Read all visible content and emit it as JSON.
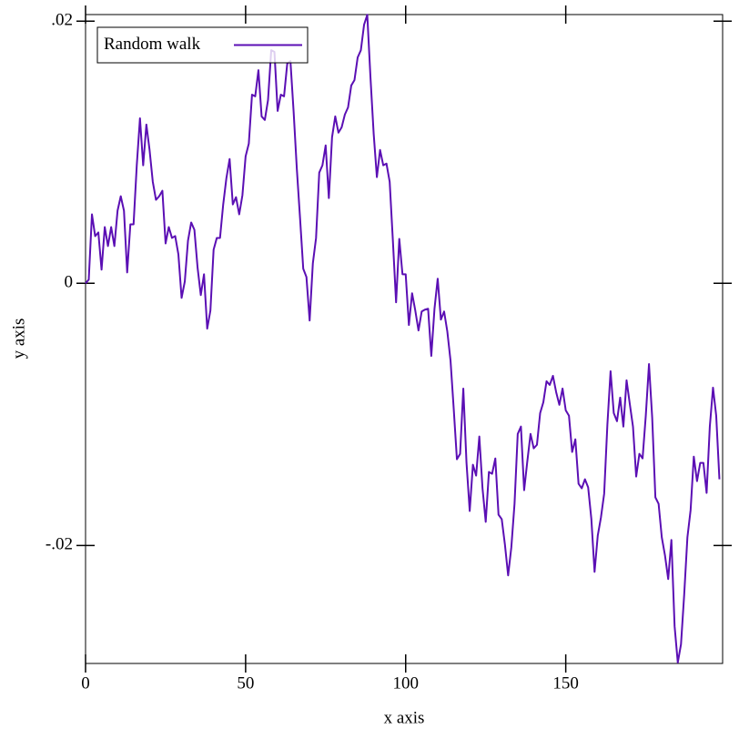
{
  "chart_data": {
    "type": "line",
    "xlabel": "x axis",
    "ylabel": "y axis",
    "xlim": [
      0,
      199
    ],
    "ylim": [
      -0.029,
      0.0205
    ],
    "xticks": [
      0,
      50,
      100,
      150
    ],
    "yticks": [
      {
        "value": 0.02,
        "label": ".02"
      },
      0,
      {
        "value": -0.02,
        "label": "-.02"
      }
    ],
    "grid": false,
    "legend": "top-left",
    "x": [
      0,
      1,
      2,
      3,
      4,
      5,
      6,
      7,
      8,
      9,
      10,
      11,
      12,
      13,
      14,
      15,
      16,
      17,
      18,
      19,
      20,
      21,
      22,
      23,
      24,
      25,
      26,
      27,
      28,
      29,
      30,
      31,
      32,
      33,
      34,
      35,
      36,
      37,
      38,
      39,
      40,
      41,
      42,
      43,
      44,
      45,
      46,
      47,
      48,
      49,
      50,
      51,
      52,
      53,
      54,
      55,
      56,
      57,
      58,
      59,
      60,
      61,
      62,
      63,
      64,
      65,
      66,
      67,
      68,
      69,
      70,
      71,
      72,
      73,
      74,
      75,
      76,
      77,
      78,
      79,
      80,
      81,
      82,
      83,
      84,
      85,
      86,
      87,
      88,
      89,
      90,
      91,
      92,
      93,
      94,
      95,
      96,
      97,
      98,
      99,
      100,
      101,
      102,
      103,
      104,
      105,
      106,
      107,
      108,
      109,
      110,
      111,
      112,
      113,
      114,
      115,
      116,
      117,
      118,
      119,
      120,
      121,
      122,
      123,
      124,
      125,
      126,
      127,
      128,
      129,
      130,
      131,
      132,
      133,
      134,
      135,
      136,
      137,
      138,
      139,
      140,
      141,
      142,
      143,
      144,
      145,
      146,
      147,
      148,
      149,
      150,
      151,
      152,
      153,
      154,
      155,
      156,
      157,
      158,
      159,
      160,
      161,
      162,
      163,
      164,
      165,
      166,
      167,
      168,
      169,
      170,
      171,
      172,
      173,
      174,
      175,
      176,
      177,
      178,
      179,
      180,
      181,
      182,
      183,
      184,
      185,
      186,
      187,
      188,
      189,
      190,
      191,
      192,
      193,
      194,
      195,
      196,
      197,
      198
    ],
    "series": [
      {
        "name": "Random walk",
        "color": "#5b0fb4",
        "values": [
          0,
          0.00028,
          0.00526,
          0.0036,
          0.00388,
          0.00104,
          0.00429,
          0.00284,
          0.00429,
          0.00284,
          0.00554,
          0.00664,
          0.00554,
          0.00083,
          0.0045,
          0.0045,
          0.009,
          0.01259,
          0.009,
          0.01211,
          0.01017,
          0.00775,
          0.00637,
          0.00664,
          0.00706,
          0.00304,
          0.00429,
          0.00346,
          0.0036,
          0.00221,
          -0.00111,
          0.00014,
          0.00325,
          0.00464,
          0.00408,
          0.00118,
          -0.0009,
          0.00069,
          -0.00346,
          -0.00208,
          0.00256,
          0.00346,
          0.00346,
          0.00602,
          0.00803,
          0.00948,
          0.00602,
          0.00657,
          0.00526,
          0.00671,
          0.00969,
          0.01066,
          0.01439,
          0.01426,
          0.01626,
          0.01273,
          0.01246,
          0.01398,
          0.01778,
          0.01765,
          0.01315,
          0.01439,
          0.01426,
          0.01675,
          0.01695,
          0.01308,
          0.00872,
          0.00498,
          0.00111,
          0.00048,
          -0.00284,
          0.00152,
          0.00346,
          0.00844,
          0.009,
          0.01052,
          0.0065,
          0.01114,
          0.01273,
          0.01149,
          0.0119,
          0.01287,
          0.01342,
          0.01509,
          0.0155,
          0.01723,
          0.01778,
          0.01972,
          0.02048,
          0.01571,
          0.01142,
          0.0081,
          0.01017,
          0.009,
          0.00913,
          0.00775,
          0.00325,
          -0.00145,
          0.00339,
          0.00069,
          0.00069,
          -0.00318,
          -0.00076,
          -0.00208,
          -0.0036,
          -0.00215,
          -0.00201,
          -0.00194,
          -0.00554,
          -0.00194,
          0.00035,
          -0.00277,
          -0.00215,
          -0.00367,
          -0.00588,
          -0.00955,
          -0.01342,
          -0.01301,
          -0.00803,
          -0.0137,
          -0.01737,
          -0.01384,
          -0.01467,
          -0.01169,
          -0.01564,
          -0.0182,
          -0.01439,
          -0.01453,
          -0.01336,
          -0.01765,
          -0.01799,
          -0.01993,
          -0.02228,
          -0.02014,
          -0.01682,
          -0.01149,
          -0.01093,
          -0.01578,
          -0.01356,
          -0.01149,
          -0.01259,
          -0.01232,
          -0.0099,
          -0.00907,
          -0.00747,
          -0.00775,
          -0.00706,
          -0.0083,
          -0.00927,
          -0.00803,
          -0.00969,
          -0.0101,
          -0.01287,
          -0.0119,
          -0.01529,
          -0.01564,
          -0.01495,
          -0.01557,
          -0.01799,
          -0.02201,
          -0.01924,
          -0.01785,
          -0.01605,
          -0.0108,
          -0.00671,
          -0.0099,
          -0.01052,
          -0.00872,
          -0.01093,
          -0.0074,
          -0.0092,
          -0.01093,
          -0.01474,
          -0.01301,
          -0.01336,
          -0.0101,
          -0.00616,
          -0.01024,
          -0.01633,
          -0.01682,
          -0.01938,
          -0.02076,
          -0.02256,
          -0.01958,
          -0.02616,
          -0.02893,
          -0.02754,
          -0.02374,
          -0.01938,
          -0.0173,
          -0.01322,
          -0.01509,
          -0.0137,
          -0.0137,
          -0.01599,
          -0.01093,
          -0.00796,
          -0.0101,
          -0.01495
        ]
      }
    ]
  }
}
